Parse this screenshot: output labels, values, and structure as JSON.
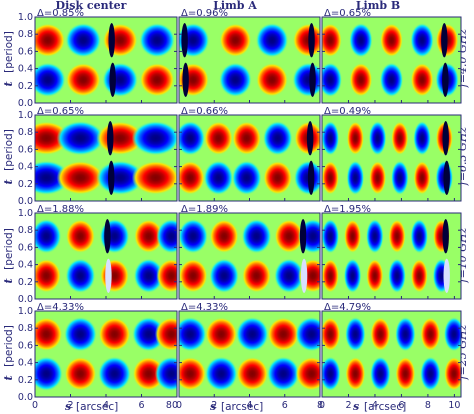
{
  "column_titles": [
    "Disk center",
    "Limb A",
    "Limb B"
  ],
  "frequency_labels": [
    "f=4.0 GHz",
    "f=6.3 GHz",
    "f=10 GHz",
    "f=25 GHz"
  ],
  "axes": {
    "xlabel_symbol": "s",
    "xlabel_unit": "[arcsec]",
    "ylabel_symbol": "t",
    "ylabel_unit": "[period]",
    "x_ticks": [
      "0",
      "2",
      "4",
      "6",
      "8"
    ],
    "x_ticks_last_col": [
      "0",
      "2",
      "4",
      "6",
      "8",
      "10"
    ],
    "x_last_tick_first_col": "80",
    "y_ticks": [
      "0.0",
      "0.2",
      "0.4",
      "0.6",
      "0.8",
      "1.0"
    ]
  },
  "chart_data": {
    "type": "heatmap",
    "colormap": "blue-cyan-yellow-red (jet)",
    "xlabel": "s [arcsec]",
    "ylabel": "t [period]",
    "ylim": [
      0,
      1
    ],
    "columns": [
      {
        "title": "Disk center",
        "xlim": [
          0,
          8
        ]
      },
      {
        "title": "Limb A",
        "xlim": [
          0,
          8
        ]
      },
      {
        "title": "Limb B",
        "xlim": [
          0,
          10.5
        ]
      }
    ],
    "rows": [
      {
        "label": "f=4.0 GHz",
        "delta": [
          "Δ=0.85%",
          "Δ=0.96%",
          "Δ=0.65%"
        ]
      },
      {
        "label": "f=6.3 GHz",
        "delta": [
          "Δ=0.65%",
          "Δ=0.66%",
          "Δ=0.49%"
        ]
      },
      {
        "label": "f=10 GHz",
        "delta": [
          "Δ=1.88%",
          "Δ=1.89%",
          "Δ=1.95%"
        ]
      },
      {
        "label": "f=25 GHz",
        "delta": [
          "Δ=4.33%",
          "Δ=4.33%",
          "Δ=4.79%"
        ]
      }
    ]
  }
}
